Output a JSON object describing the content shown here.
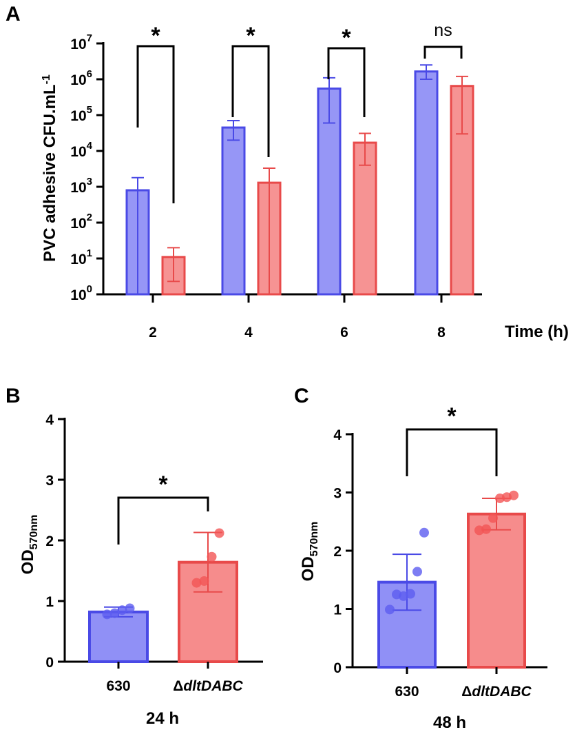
{
  "colors": {
    "wt_fill": "#8484f5",
    "wt_stroke": "#4a4ae6",
    "mut_fill": "#f58080",
    "mut_stroke": "#e84a4a",
    "wt_point": "#5c5cf0",
    "mut_point": "#f25555"
  },
  "chart_data": [
    {
      "panel": "A",
      "type": "bar",
      "scale": "log10",
      "ylabel": "PVC adhesive CFU.mL",
      "ylabel_sup": "-1",
      "xlabel": "Time (h)",
      "ylim": [
        1,
        10000000
      ],
      "y_ticks": [
        {
          "base": "10",
          "exp": "0"
        },
        {
          "base": "10",
          "exp": "1"
        },
        {
          "base": "10",
          "exp": "2"
        },
        {
          "base": "10",
          "exp": "3"
        },
        {
          "base": "10",
          "exp": "4"
        },
        {
          "base": "10",
          "exp": "5"
        },
        {
          "base": "10",
          "exp": "6"
        },
        {
          "base": "10",
          "exp": "7"
        }
      ],
      "categories": [
        "2",
        "4",
        "6",
        "8"
      ],
      "series": [
        {
          "name": "630",
          "values": [
            800,
            45000,
            550000,
            1650000
          ],
          "err_low": [
            1,
            20000,
            60000,
            1000000
          ],
          "err_high": [
            1800,
            70000,
            1100000,
            2500000
          ]
        },
        {
          "name": "ΔdltDABC",
          "values": [
            11,
            1300,
            17000,
            650000
          ],
          "err_low": [
            2.3,
            1,
            4000,
            30000
          ],
          "err_high": [
            20,
            3300,
            31000,
            1200000
          ]
        }
      ],
      "significance": [
        "*",
        "*",
        "*",
        "ns"
      ]
    },
    {
      "panel": "B",
      "type": "bar",
      "ylabel_main": "OD",
      "ylabel_sub": "570nm",
      "xlabel": "24 h",
      "ylim": [
        0,
        4
      ],
      "y_ticks": [
        "0",
        "1",
        "2",
        "3",
        "4"
      ],
      "categories": [
        "630",
        "ΔdltDABC"
      ],
      "cat_prefix": [
        "",
        "Δ"
      ],
      "cat_name": [
        "630",
        "dltDABC"
      ],
      "values": [
        0.82,
        1.64
      ],
      "err": [
        0.08,
        0.49
      ],
      "points": [
        [
          0.78,
          0.8,
          0.85,
          0.88
        ],
        [
          1.3,
          1.33,
          1.73,
          2.12
        ]
      ],
      "significance": "*"
    },
    {
      "panel": "C",
      "type": "bar",
      "ylabel_main": "OD",
      "ylabel_sub": "570nm",
      "xlabel": "48 h",
      "ylim": [
        0,
        4
      ],
      "y_ticks": [
        "0",
        "1",
        "2",
        "3",
        "4"
      ],
      "categories": [
        "630",
        "ΔdltDABC"
      ],
      "cat_prefix": [
        "",
        "Δ"
      ],
      "cat_name": [
        "630",
        "dltDABC"
      ],
      "values": [
        1.46,
        2.63
      ],
      "err": [
        0.48,
        0.27
      ],
      "points": [
        [
          0.99,
          1.25,
          1.22,
          1.26,
          1.64,
          2.31
        ],
        [
          2.35,
          2.37,
          2.56,
          2.9,
          2.92,
          2.95
        ]
      ],
      "significance": "*"
    }
  ]
}
